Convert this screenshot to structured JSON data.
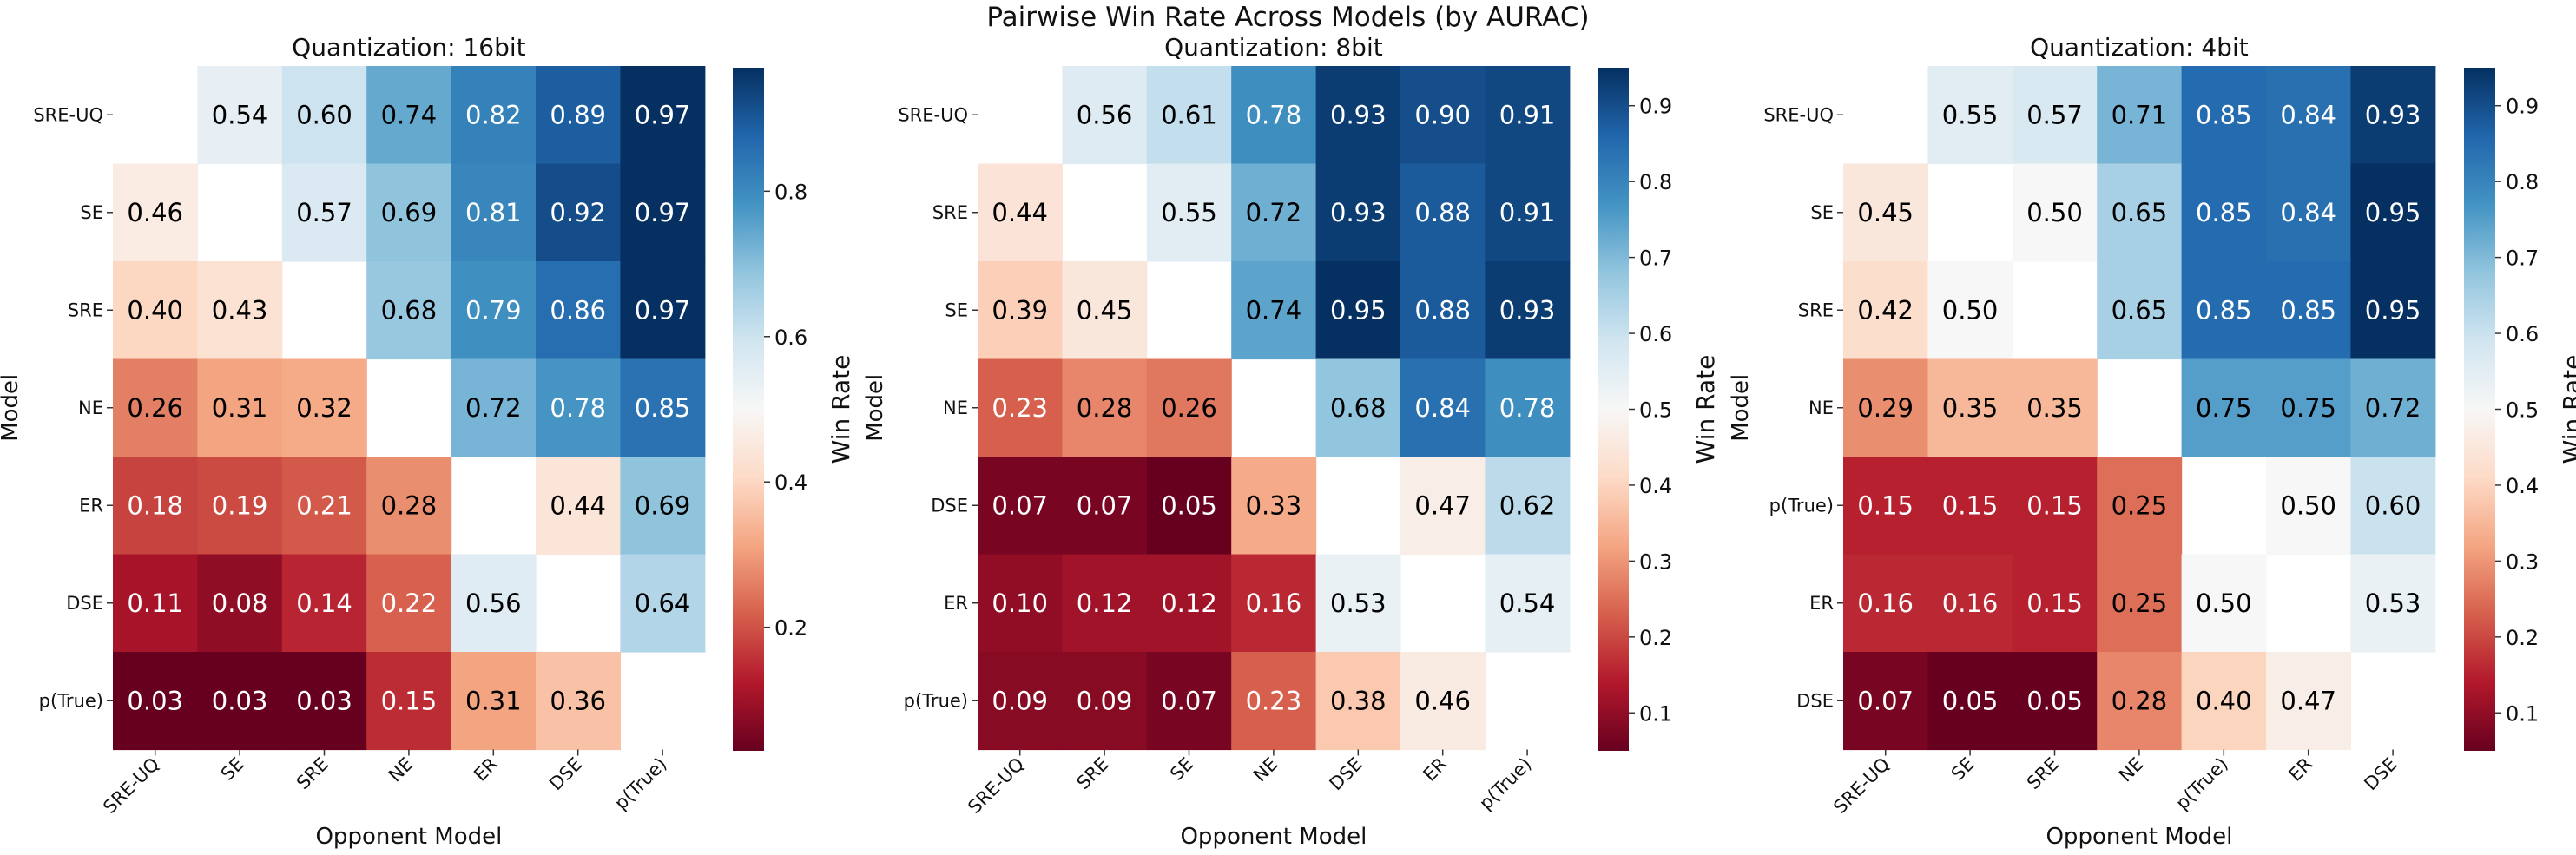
{
  "figure": {
    "suptitle": "Pairwise Win Rate Across Models (by AURAC)",
    "colormap": [
      "#67001f",
      "#b2182b",
      "#d6604d",
      "#f4a582",
      "#fddbc7",
      "#f7f7f7",
      "#d1e5f0",
      "#92c5de",
      "#4393c3",
      "#2166ac",
      "#053061"
    ],
    "text_dark": "#000000",
    "text_light": "#ffffff"
  },
  "chart_data": [
    {
      "type": "heatmap",
      "title": "Quantization: 16bit",
      "xlabel": "Opponent Model",
      "ylabel": "Model",
      "colorbar_label": "Win Rate",
      "vmin": 0.03,
      "vmax": 0.97,
      "colorbar_ticks": [
        "0.2",
        "0.4",
        "0.6",
        "0.8"
      ],
      "rows": [
        "SRE-UQ",
        "SE",
        "SRE",
        "NE",
        "ER",
        "DSE",
        "p(True)"
      ],
      "cols": [
        "SRE-UQ",
        "SE",
        "SRE",
        "NE",
        "ER",
        "DSE",
        "p(True)"
      ],
      "values": [
        [
          null,
          0.54,
          0.6,
          0.74,
          0.82,
          0.89,
          0.97
        ],
        [
          0.46,
          null,
          0.57,
          0.69,
          0.81,
          0.92,
          0.97
        ],
        [
          0.4,
          0.43,
          null,
          0.68,
          0.79,
          0.86,
          0.97
        ],
        [
          0.26,
          0.31,
          0.32,
          null,
          0.72,
          0.78,
          0.85
        ],
        [
          0.18,
          0.19,
          0.21,
          0.28,
          null,
          0.44,
          0.69
        ],
        [
          0.11,
          0.08,
          0.14,
          0.22,
          0.56,
          null,
          0.64
        ],
        [
          0.03,
          0.03,
          0.03,
          0.15,
          0.31,
          0.36,
          null
        ]
      ],
      "labels": [
        [
          "",
          "0.54",
          "0.60",
          "0.74",
          "0.82",
          "0.89",
          "0.97"
        ],
        [
          "0.46",
          "",
          "0.57",
          "0.69",
          "0.81",
          "0.92",
          "0.97"
        ],
        [
          "0.40",
          "0.43",
          "",
          "0.68",
          "0.79",
          "0.86",
          "0.97"
        ],
        [
          "0.26",
          "0.31",
          "0.32",
          "",
          "0.72",
          "0.78",
          "0.85"
        ],
        [
          "0.18",
          "0.19",
          "0.21",
          "0.28",
          "",
          "0.44",
          "0.69"
        ],
        [
          "0.11",
          "0.08",
          "0.14",
          "0.22",
          "0.56",
          "",
          "0.64"
        ],
        [
          "0.03",
          "0.03",
          "0.03",
          "0.15",
          "0.31",
          "0.36",
          ""
        ]
      ]
    },
    {
      "type": "heatmap",
      "title": "Quantization: 8bit",
      "xlabel": "Opponent Model",
      "ylabel": "Model",
      "colorbar_label": "Win Rate",
      "vmin": 0.05,
      "vmax": 0.95,
      "colorbar_ticks": [
        "0.1",
        "0.2",
        "0.3",
        "0.4",
        "0.5",
        "0.6",
        "0.7",
        "0.8",
        "0.9"
      ],
      "rows": [
        "SRE-UQ",
        "SRE",
        "SE",
        "NE",
        "DSE",
        "ER",
        "p(True)"
      ],
      "cols": [
        "SRE-UQ",
        "SRE",
        "SE",
        "NE",
        "DSE",
        "ER",
        "p(True)"
      ],
      "values": [
        [
          null,
          0.56,
          0.61,
          0.78,
          0.93,
          0.9,
          0.91
        ],
        [
          0.44,
          null,
          0.55,
          0.72,
          0.93,
          0.88,
          0.91
        ],
        [
          0.39,
          0.45,
          null,
          0.74,
          0.95,
          0.88,
          0.93
        ],
        [
          0.23,
          0.28,
          0.26,
          null,
          0.68,
          0.84,
          0.78
        ],
        [
          0.07,
          0.07,
          0.05,
          0.33,
          null,
          0.47,
          0.62
        ],
        [
          0.1,
          0.12,
          0.12,
          0.16,
          0.53,
          null,
          0.54
        ],
        [
          0.09,
          0.09,
          0.07,
          0.23,
          0.38,
          0.46,
          null
        ]
      ],
      "labels": [
        [
          "",
          "0.56",
          "0.61",
          "0.78",
          "0.93",
          "0.90",
          "0.91"
        ],
        [
          "0.44",
          "",
          "0.55",
          "0.72",
          "0.93",
          "0.88",
          "0.91"
        ],
        [
          "0.39",
          "0.45",
          "",
          "0.74",
          "0.95",
          "0.88",
          "0.93"
        ],
        [
          "0.23",
          "0.28",
          "0.26",
          "",
          "0.68",
          "0.84",
          "0.78"
        ],
        [
          "0.07",
          "0.07",
          "0.05",
          "0.33",
          "",
          "0.47",
          "0.62"
        ],
        [
          "0.10",
          "0.12",
          "0.12",
          "0.16",
          "0.53",
          "",
          "0.54"
        ],
        [
          "0.09",
          "0.09",
          "0.07",
          "0.23",
          "0.38",
          "0.46",
          ""
        ]
      ]
    },
    {
      "type": "heatmap",
      "title": "Quantization: 4bit",
      "xlabel": "Opponent Model",
      "ylabel": "Model",
      "colorbar_label": "Win Rate",
      "vmin": 0.05,
      "vmax": 0.95,
      "colorbar_ticks": [
        "0.1",
        "0.2",
        "0.3",
        "0.4",
        "0.5",
        "0.6",
        "0.7",
        "0.8",
        "0.9"
      ],
      "rows": [
        "SRE-UQ",
        "SE",
        "SRE",
        "NE",
        "p(True)",
        "ER",
        "DSE"
      ],
      "cols": [
        "SRE-UQ",
        "SE",
        "SRE",
        "NE",
        "p(True)",
        "ER",
        "DSE"
      ],
      "values": [
        [
          null,
          0.55,
          0.57,
          0.71,
          0.85,
          0.84,
          0.93
        ],
        [
          0.45,
          null,
          0.5,
          0.65,
          0.85,
          0.84,
          0.95
        ],
        [
          0.42,
          0.5,
          null,
          0.65,
          0.85,
          0.85,
          0.95
        ],
        [
          0.29,
          0.35,
          0.35,
          null,
          0.75,
          0.75,
          0.72
        ],
        [
          0.15,
          0.15,
          0.15,
          0.25,
          null,
          0.5,
          0.6
        ],
        [
          0.16,
          0.16,
          0.15,
          0.25,
          0.5,
          null,
          0.53
        ],
        [
          0.07,
          0.05,
          0.05,
          0.28,
          0.4,
          0.47,
          null
        ]
      ],
      "labels": [
        [
          "",
          "0.55",
          "0.57",
          "0.71",
          "0.85",
          "0.84",
          "0.93"
        ],
        [
          "0.45",
          "",
          "0.50",
          "0.65",
          "0.85",
          "0.84",
          "0.95"
        ],
        [
          "0.42",
          "0.50",
          "",
          "0.65",
          "0.85",
          "0.85",
          "0.95"
        ],
        [
          "0.29",
          "0.35",
          "0.35",
          "",
          "0.75",
          "0.75",
          "0.72"
        ],
        [
          "0.15",
          "0.15",
          "0.15",
          "0.25",
          "",
          "0.50",
          "0.60"
        ],
        [
          "0.16",
          "0.16",
          "0.15",
          "0.25",
          "0.50",
          "",
          "0.53"
        ],
        [
          "0.07",
          "0.05",
          "0.05",
          "0.28",
          "0.40",
          "0.47",
          ""
        ]
      ]
    }
  ]
}
